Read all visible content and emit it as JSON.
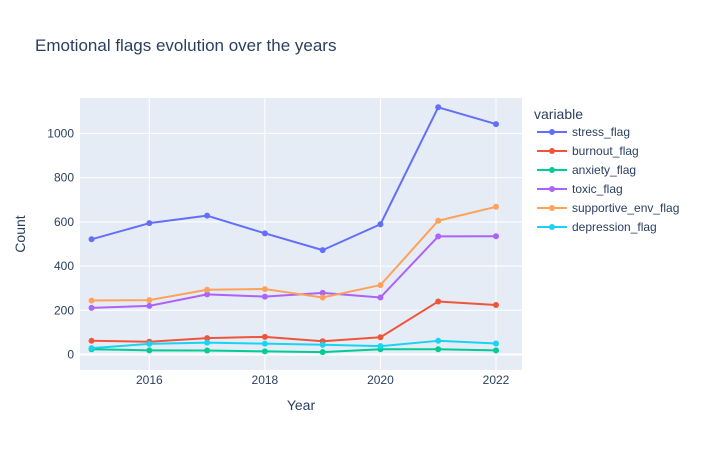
{
  "chart_data": {
    "type": "line",
    "title": "Emotional flags evolution over the years",
    "xlabel": "Year",
    "ylabel": "Count",
    "xlim": [
      2014.8,
      2022.45
    ],
    "ylim": [
      -70,
      1160
    ],
    "x_ticks": [
      2016,
      2018,
      2020,
      2022
    ],
    "y_ticks": [
      0,
      200,
      400,
      600,
      800,
      1000
    ],
    "grid": true,
    "legend_title": "variable",
    "legend_position": "right",
    "x": [
      2015,
      2016,
      2017,
      2018,
      2019,
      2020,
      2021,
      2022
    ],
    "series": [
      {
        "name": "stress_flag",
        "color": "#636efa",
        "values": [
          521,
          594,
          628,
          548,
          472,
          589,
          1118,
          1042
        ]
      },
      {
        "name": "burnout_flag",
        "color": "#ef553b",
        "values": [
          62,
          58,
          74,
          80,
          60,
          78,
          240,
          224
        ]
      },
      {
        "name": "anxiety_flag",
        "color": "#00cc96",
        "values": [
          24,
          19,
          18,
          14,
          11,
          24,
          24,
          19
        ]
      },
      {
        "name": "toxic_flag",
        "color": "#ab63fa",
        "values": [
          211,
          220,
          272,
          262,
          279,
          258,
          534,
          535
        ]
      },
      {
        "name": "supportive_env_flag",
        "color": "#ffa15a",
        "values": [
          244,
          246,
          293,
          296,
          258,
          314,
          605,
          668
        ]
      },
      {
        "name": "depression_flag",
        "color": "#19d3f3",
        "values": [
          29,
          48,
          54,
          49,
          44,
          38,
          62,
          50
        ]
      }
    ]
  }
}
